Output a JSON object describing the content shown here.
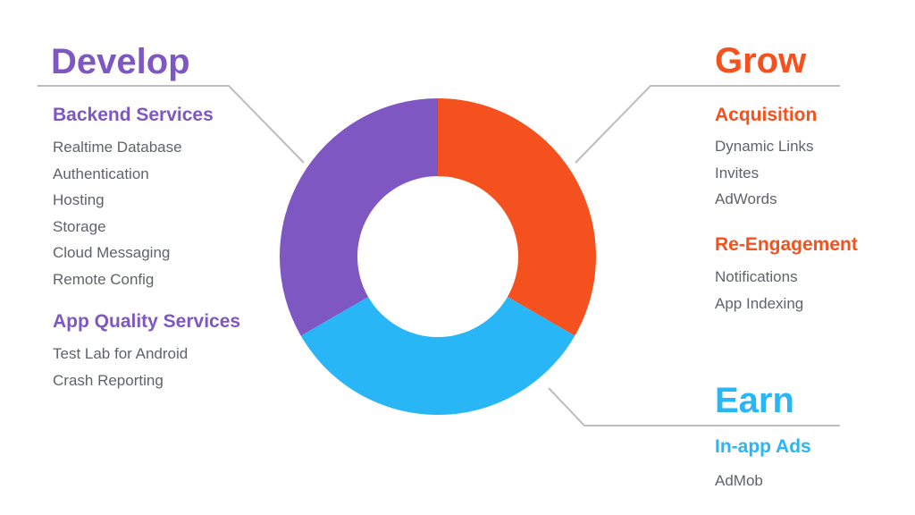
{
  "colors": {
    "develop": "#7e57c2",
    "grow": "#f4511e",
    "earn": "#29b6f6",
    "leader_line": "#bdbdbd",
    "item_text": "#5f6368"
  },
  "chart_data": {
    "type": "donut",
    "segments": [
      {
        "key": "grow",
        "fraction": 0.3333,
        "color": "#f4511e"
      },
      {
        "key": "earn",
        "fraction": 0.3333,
        "color": "#29b6f6"
      },
      {
        "key": "develop",
        "fraction": 0.3334,
        "color": "#7e57c2"
      }
    ]
  },
  "develop": {
    "title": "Develop",
    "groups": [
      {
        "title": "Backend Services",
        "items": [
          "Realtime Database",
          "Authentication",
          "Hosting",
          "Storage",
          "Cloud Messaging",
          "Remote Config"
        ]
      },
      {
        "title": "App Quality Services",
        "items": [
          "Test Lab for Android",
          "Crash Reporting"
        ]
      }
    ]
  },
  "grow": {
    "title": "Grow",
    "groups": [
      {
        "title": "Acquisition",
        "items": [
          "Dynamic Links",
          "Invites",
          "AdWords"
        ]
      },
      {
        "title": "Re-Engagement",
        "items": [
          "Notifications",
          "App Indexing"
        ]
      }
    ]
  },
  "earn": {
    "title": "Earn",
    "groups": [
      {
        "title": "In-app Ads",
        "items": [
          "AdMob"
        ]
      }
    ]
  }
}
